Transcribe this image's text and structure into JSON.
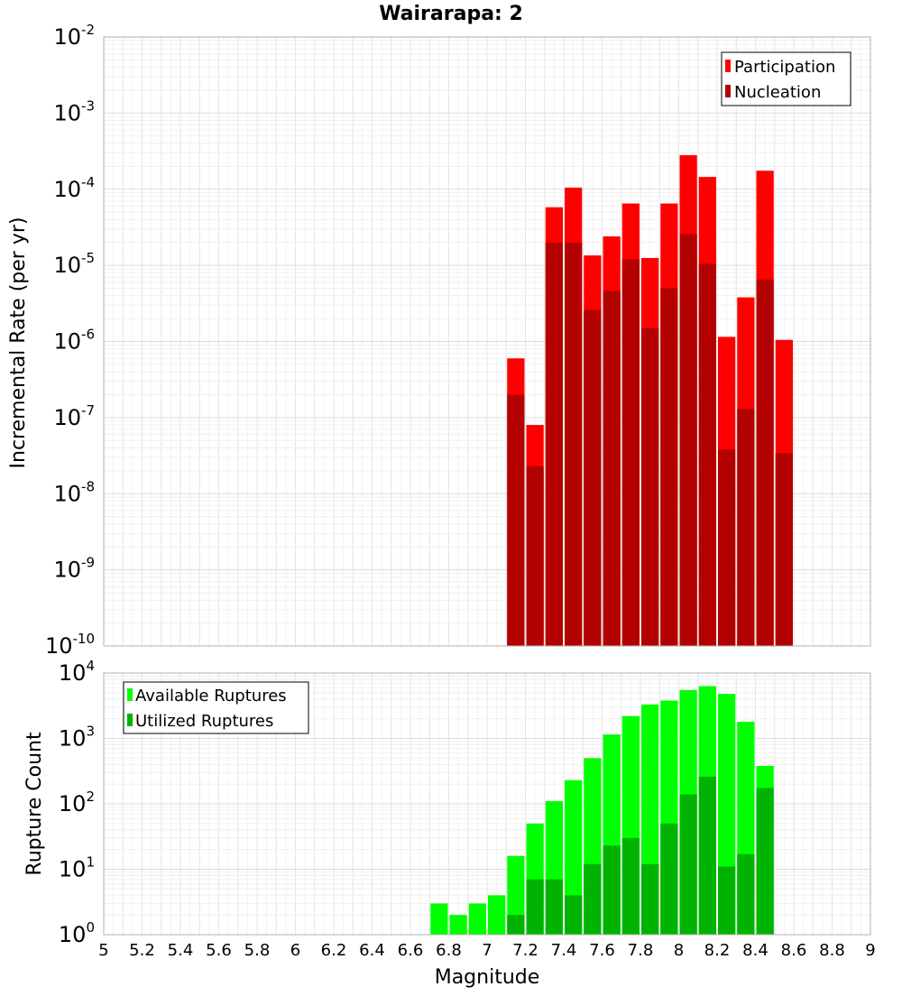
{
  "chart_data": [
    {
      "type": "bar",
      "title": "Wairarapa: 2",
      "xlabel": "Magnitude",
      "ylabel": "Incremental Rate (per yr)",
      "yscale": "log",
      "xlim": [
        5,
        9
      ],
      "ylim": [
        1e-10,
        0.01
      ],
      "y_tick_labels": [
        {
          "base": "10",
          "exp": "-10"
        },
        {
          "base": "10",
          "exp": "-9"
        },
        {
          "base": "10",
          "exp": "-8"
        },
        {
          "base": "10",
          "exp": "-7"
        },
        {
          "base": "10",
          "exp": "-6"
        },
        {
          "base": "10",
          "exp": "-5"
        },
        {
          "base": "10",
          "exp": "-4"
        },
        {
          "base": "10",
          "exp": "-3"
        },
        {
          "base": "10",
          "exp": "-2"
        }
      ],
      "bin_width": 0.1,
      "x": [
        7.15,
        7.25,
        7.35,
        7.45,
        7.55,
        7.65,
        7.75,
        7.85,
        7.95,
        8.05,
        8.15,
        8.25,
        8.35,
        8.45,
        8.55
      ],
      "series": [
        {
          "name": "Participation",
          "color": "#ff0000",
          "values": [
            6e-07,
            8e-08,
            5.8e-05,
            0.000105,
            1.35e-05,
            2.4e-05,
            6.5e-05,
            1.25e-05,
            6.5e-05,
            0.00028,
            0.000145,
            1.15e-06,
            3.8e-06,
            0.000175,
            1.05e-06
          ]
        },
        {
          "name": "Nucleation",
          "color": "#b30000",
          "values": [
            2e-07,
            2.3e-08,
            2e-05,
            2e-05,
            2.6e-06,
            4.6e-06,
            1.2e-05,
            1.5e-06,
            5e-06,
            2.6e-05,
            1.05e-05,
            3.8e-08,
            1.3e-07,
            6.5e-06,
            3.4e-08
          ]
        }
      ],
      "legend": "top-right"
    },
    {
      "type": "bar",
      "xlabel": "Magnitude",
      "ylabel": "Rupture Count",
      "yscale": "log",
      "xlim": [
        5,
        9
      ],
      "ylim": [
        1,
        10000
      ],
      "x_tick_labels": [
        "5",
        "5.2",
        "5.4",
        "5.6",
        "5.8",
        "6",
        "6.2",
        "6.4",
        "6.6",
        "6.8",
        "7",
        "7.2",
        "7.4",
        "7.6",
        "7.8",
        "8",
        "8.2",
        "8.4",
        "8.6",
        "8.8",
        "9"
      ],
      "y_tick_labels": [
        {
          "base": "10",
          "exp": "0"
        },
        {
          "base": "10",
          "exp": "1"
        },
        {
          "base": "10",
          "exp": "2"
        },
        {
          "base": "10",
          "exp": "3"
        },
        {
          "base": "10",
          "exp": "4"
        }
      ],
      "bin_width": 0.1,
      "x": [
        6.75,
        6.85,
        6.95,
        7.05,
        7.15,
        7.25,
        7.35,
        7.45,
        7.55,
        7.65,
        7.75,
        7.85,
        7.95,
        8.05,
        8.15,
        8.25,
        8.35,
        8.45,
        8.55
      ],
      "series": [
        {
          "name": "Available Ruptures",
          "color": "#00ff00",
          "values": [
            3,
            2,
            3,
            4,
            16,
            50,
            110,
            230,
            500,
            1150,
            2200,
            3300,
            3800,
            5500,
            6300,
            4800,
            1800,
            380,
            1
          ]
        },
        {
          "name": "Utilized Ruptures",
          "color": "#00b300",
          "values": [
            0,
            0,
            0,
            0,
            2,
            7,
            7,
            4,
            12,
            23,
            30,
            12,
            50,
            140,
            260,
            11,
            17,
            175,
            1
          ]
        }
      ],
      "legend": "top-left"
    }
  ]
}
